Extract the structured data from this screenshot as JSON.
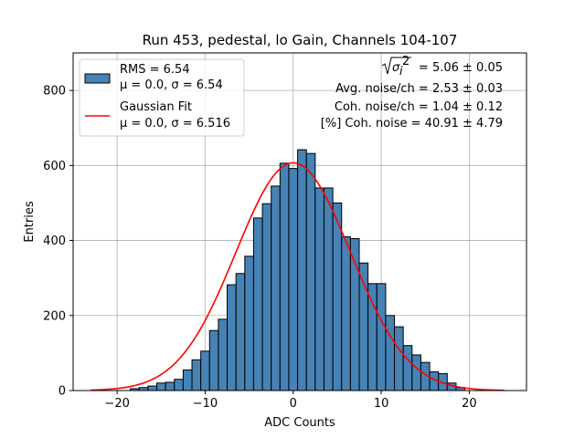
{
  "chart_data": {
    "type": "bar",
    "title": "Run 453, pedestal, lo Gain, Channels 104-107",
    "xlabel": "ADC Counts",
    "ylabel": "Entries",
    "xlim": [
      -25,
      26.5
    ],
    "ylim": [
      0,
      900
    ],
    "xticks": [
      -20,
      -10,
      0,
      10,
      20
    ],
    "yticks": [
      0,
      200,
      400,
      600,
      800
    ],
    "grid": true,
    "legend_placement": "top-left",
    "colors": {
      "bar_fill": "#4682b4",
      "bar_edge": "#000000",
      "fit_line": "#ff0000",
      "grid": "#b0b0b0"
    },
    "histogram": {
      "name": "RMS = 6.54",
      "stats": "μ = 0.0, σ = 6.54",
      "bin_width": 1,
      "bin_centers": [
        -18,
        -17,
        -16,
        -15,
        -14,
        -13,
        -12,
        -11,
        -10,
        -9,
        -8,
        -7,
        -6,
        -5,
        -4,
        -3,
        -2,
        -1,
        0,
        1,
        2,
        3,
        4,
        5,
        6,
        7,
        8,
        9,
        10,
        11,
        12,
        13,
        14,
        15,
        16,
        17,
        18,
        19
      ],
      "counts": [
        5,
        8,
        12,
        20,
        22,
        30,
        55,
        82,
        105,
        160,
        190,
        282,
        312,
        358,
        460,
        498,
        545,
        606,
        592,
        642,
        632,
        540,
        540,
        500,
        410,
        405,
        340,
        285,
        285,
        200,
        170,
        120,
        95,
        75,
        50,
        45,
        20,
        8
      ]
    },
    "fit": {
      "name": "Gaussian Fit",
      "stats": "μ = 0.0, σ = 6.516",
      "mu": 0.0,
      "sigma": 6.516,
      "amplitude": 607,
      "x_range": [
        -23,
        24
      ]
    },
    "annotations": [
      {
        "label": "= 5.06 ± 0.05",
        "sym": "√σᵢ²"
      },
      {
        "label": "Avg. noise/ch = 2.53 ± 0.03"
      },
      {
        "label": "Coh. noise/ch = 1.04 ± 0.12"
      },
      {
        "label": "[%] Coh. noise = 40.91 ± 4.79"
      }
    ]
  }
}
